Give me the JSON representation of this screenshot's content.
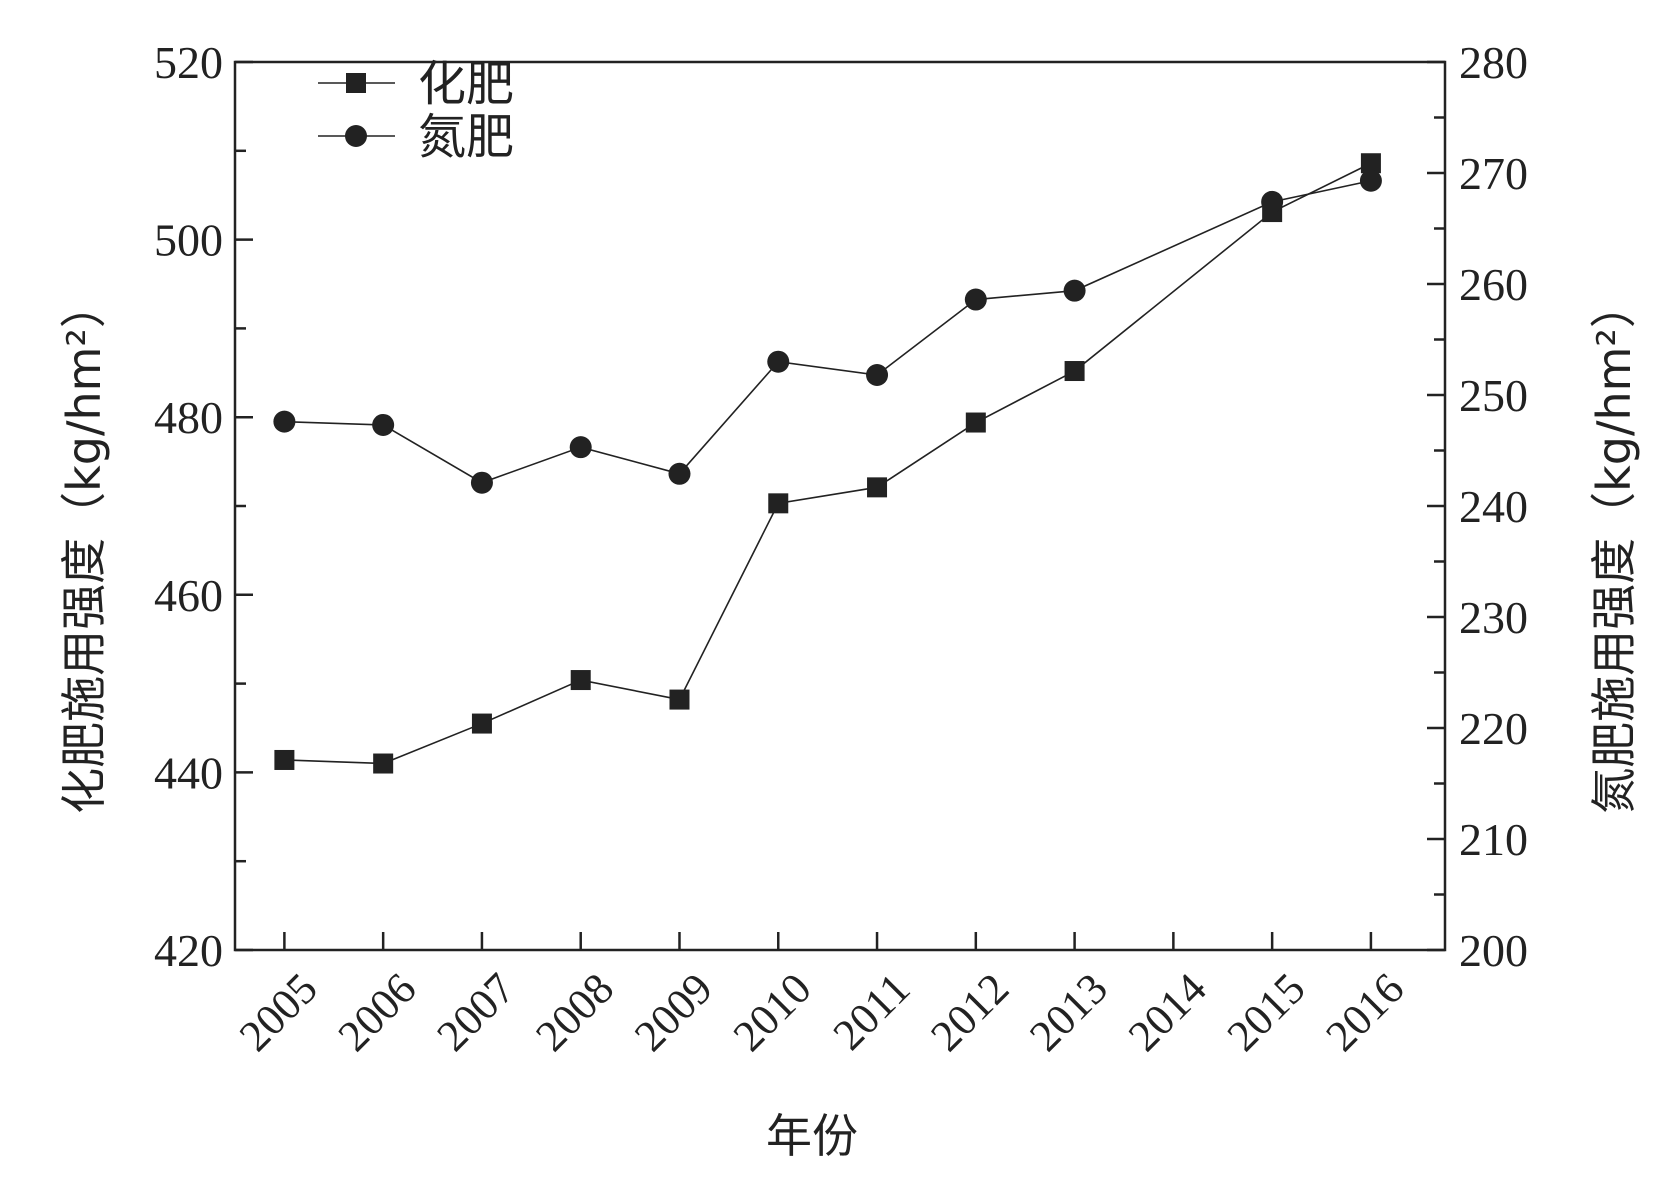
{
  "chart_data": {
    "type": "line",
    "xlabel": "年份",
    "ylabel_left": "化肥施用强度（kg/hm²）",
    "ylabel_right": "氮肥施用强度（kg/hm²）",
    "categories": [
      "2005",
      "2006",
      "2007",
      "2008",
      "2009",
      "2010",
      "2011",
      "2012",
      "2013",
      "2014",
      "2015",
      "2016"
    ],
    "ylim_left": [
      420,
      520
    ],
    "ylim_right": [
      200,
      280
    ],
    "yticks_left": [
      "420",
      "440",
      "460",
      "480",
      "500",
      "520"
    ],
    "yticks_right": [
      "200",
      "210",
      "220",
      "230",
      "240",
      "250",
      "260",
      "270",
      "280"
    ],
    "grid": false,
    "legend_position": "top-left",
    "series": [
      {
        "name": "化肥",
        "axis": "left",
        "marker": "square",
        "color": "#222222",
        "x": [
          "2005",
          "2006",
          "2007",
          "2008",
          "2009",
          "2010",
          "2011",
          "2012",
          "2013",
          "2015",
          "2016"
        ],
        "values": [
          441.4,
          441.0,
          445.5,
          450.4,
          448.2,
          470.3,
          472.1,
          479.4,
          485.2,
          503.1,
          508.6
        ]
      },
      {
        "name": "氮肥",
        "axis": "right",
        "marker": "circle",
        "color": "#222222",
        "x": [
          "2005",
          "2006",
          "2007",
          "2008",
          "2009",
          "2010",
          "2011",
          "2012",
          "2013",
          "2015",
          "2016"
        ],
        "values": [
          247.6,
          247.3,
          242.1,
          245.3,
          242.9,
          253.0,
          251.8,
          258.6,
          259.4,
          267.4,
          269.3
        ]
      }
    ]
  }
}
